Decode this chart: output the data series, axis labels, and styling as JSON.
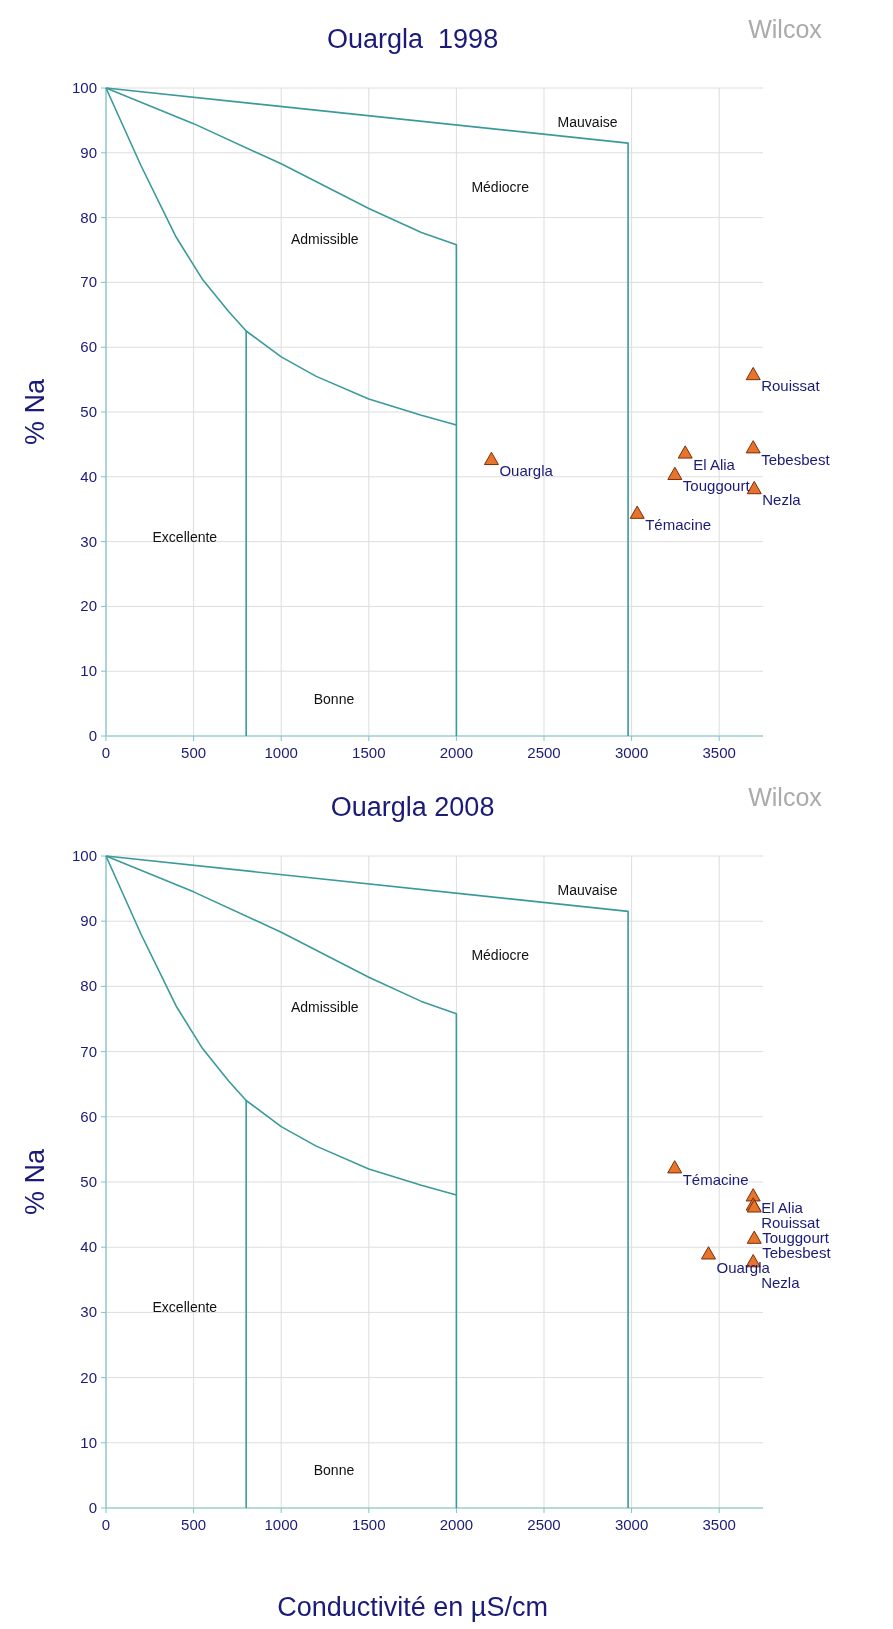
{
  "chart_data": [
    {
      "type": "scatter",
      "title": "Ouargla  1998",
      "subtitle": "Wilcox",
      "ylabel": "% Na",
      "xlim": [
        0,
        3750
      ],
      "ylim": [
        0,
        100
      ],
      "xticks": [
        0,
        500,
        1000,
        1500,
        2000,
        2500,
        3000,
        3500
      ],
      "yticks": [
        0,
        10,
        20,
        30,
        40,
        50,
        60,
        70,
        80,
        90,
        100
      ],
      "grid": true,
      "series": [
        {
          "type": "line",
          "color": "#3a9a9a",
          "x": [
            0,
            2980,
            2980
          ],
          "values": [
            100,
            91.5,
            0
          ]
        },
        {
          "type": "line",
          "color": "#3a9a9a",
          "x": [
            0,
            500,
            1000,
            1500,
            1800,
            2000,
            2000
          ],
          "values": [
            100,
            94.5,
            88.3,
            81.4,
            77.7,
            75.8,
            0
          ]
        },
        {
          "type": "line",
          "color": "#3a9a9a",
          "x": [
            0,
            200,
            400,
            550,
            700,
            800,
            1000,
            1200,
            1500,
            1800,
            2000
          ],
          "values": [
            100,
            88,
            77,
            70.5,
            65.5,
            62.5,
            58.5,
            55.5,
            52,
            49.5,
            48
          ]
        },
        {
          "type": "line",
          "color": "#3a9a9a",
          "x": [
            800,
            800
          ],
          "values": [
            62.5,
            0
          ]
        },
        {
          "name": "Ouargla",
          "color": "#e8732a",
          "marker": "triangle",
          "x": [
            2200
          ],
          "values": [
            42.7
          ]
        },
        {
          "name": "El Alia",
          "color": "#e8732a",
          "marker": "triangle",
          "x": [
            3306
          ],
          "values": [
            43.7
          ]
        },
        {
          "name": "Touggourt",
          "color": "#e8732a",
          "marker": "triangle",
          "x": [
            3247
          ],
          "values": [
            40.4
          ]
        },
        {
          "name": "Témacine",
          "color": "#e8732a",
          "marker": "triangle",
          "x": [
            3032
          ],
          "values": [
            34.4
          ]
        },
        {
          "name": "Rouissat",
          "color": "#e8732a",
          "marker": "triangle",
          "x": [
            3694
          ],
          "values": [
            55.8
          ]
        },
        {
          "name": "Tebesbest",
          "color": "#e8732a",
          "marker": "triangle",
          "x": [
            3694
          ],
          "values": [
            44.5
          ]
        },
        {
          "name": "Nezla",
          "color": "#e8732a",
          "marker": "triangle",
          "x": [
            3700
          ],
          "values": [
            38.2
          ]
        }
      ],
      "annotations": [
        "Mauvaise",
        "Médiocre",
        "Admissible",
        "Excellente",
        "Bonne"
      ]
    },
    {
      "type": "scatter",
      "title": "Ouargla 2008",
      "subtitle": "Wilcox",
      "ylabel": "% Na",
      "xlabel": "Conductivité en µS/cm",
      "xlim": [
        0,
        3750
      ],
      "ylim": [
        0,
        100
      ],
      "xticks": [
        0,
        500,
        1000,
        1500,
        2000,
        2500,
        3000,
        3500
      ],
      "yticks": [
        0,
        10,
        20,
        30,
        40,
        50,
        60,
        70,
        80,
        90,
        100
      ],
      "grid": true,
      "series": [
        {
          "type": "line",
          "color": "#3a9a9a",
          "x": [
            0,
            2980,
            2980
          ],
          "values": [
            100,
            91.5,
            0
          ]
        },
        {
          "type": "line",
          "color": "#3a9a9a",
          "x": [
            0,
            500,
            1000,
            1500,
            1800,
            2000,
            2000
          ],
          "values": [
            100,
            94.5,
            88.3,
            81.4,
            77.7,
            75.8,
            0
          ]
        },
        {
          "type": "line",
          "color": "#3a9a9a",
          "x": [
            0,
            200,
            400,
            550,
            700,
            800,
            1000,
            1200,
            1500,
            1800,
            2000
          ],
          "values": [
            100,
            88,
            77,
            70.5,
            65.5,
            62.5,
            58.5,
            55.5,
            52,
            49.5,
            48
          ]
        },
        {
          "type": "line",
          "color": "#3a9a9a",
          "x": [
            800,
            800
          ],
          "values": [
            62.5,
            0
          ]
        },
        {
          "name": "Témacine",
          "color": "#e8732a",
          "marker": "triangle",
          "x": [
            3246
          ],
          "values": [
            52.2
          ]
        },
        {
          "name": "El Alia",
          "color": "#e8732a",
          "marker": "triangle",
          "x": [
            3694
          ],
          "values": [
            47.9
          ]
        },
        {
          "name": "Rouissat",
          "color": "#e8732a",
          "marker": "triangle",
          "x": [
            3694
          ],
          "values": [
            46.5
          ]
        },
        {
          "name": "Touggourt",
          "color": "#e8732a",
          "marker": "triangle",
          "x": [
            3700
          ],
          "values": [
            46.2
          ]
        },
        {
          "name": "Tebesbest",
          "color": "#e8732a",
          "marker": "triangle",
          "x": [
            3700
          ],
          "values": [
            41.4
          ]
        },
        {
          "name": "Ouargla",
          "color": "#e8732a",
          "marker": "triangle",
          "x": [
            3439
          ],
          "values": [
            39
          ]
        },
        {
          "name": "Nezla",
          "color": "#e8732a",
          "marker": "triangle",
          "x": [
            3694
          ],
          "values": [
            37.8
          ]
        }
      ],
      "annotations": [
        "Mauvaise",
        "Médiocre",
        "Admissible",
        "Excellente",
        "Bonne"
      ]
    }
  ]
}
